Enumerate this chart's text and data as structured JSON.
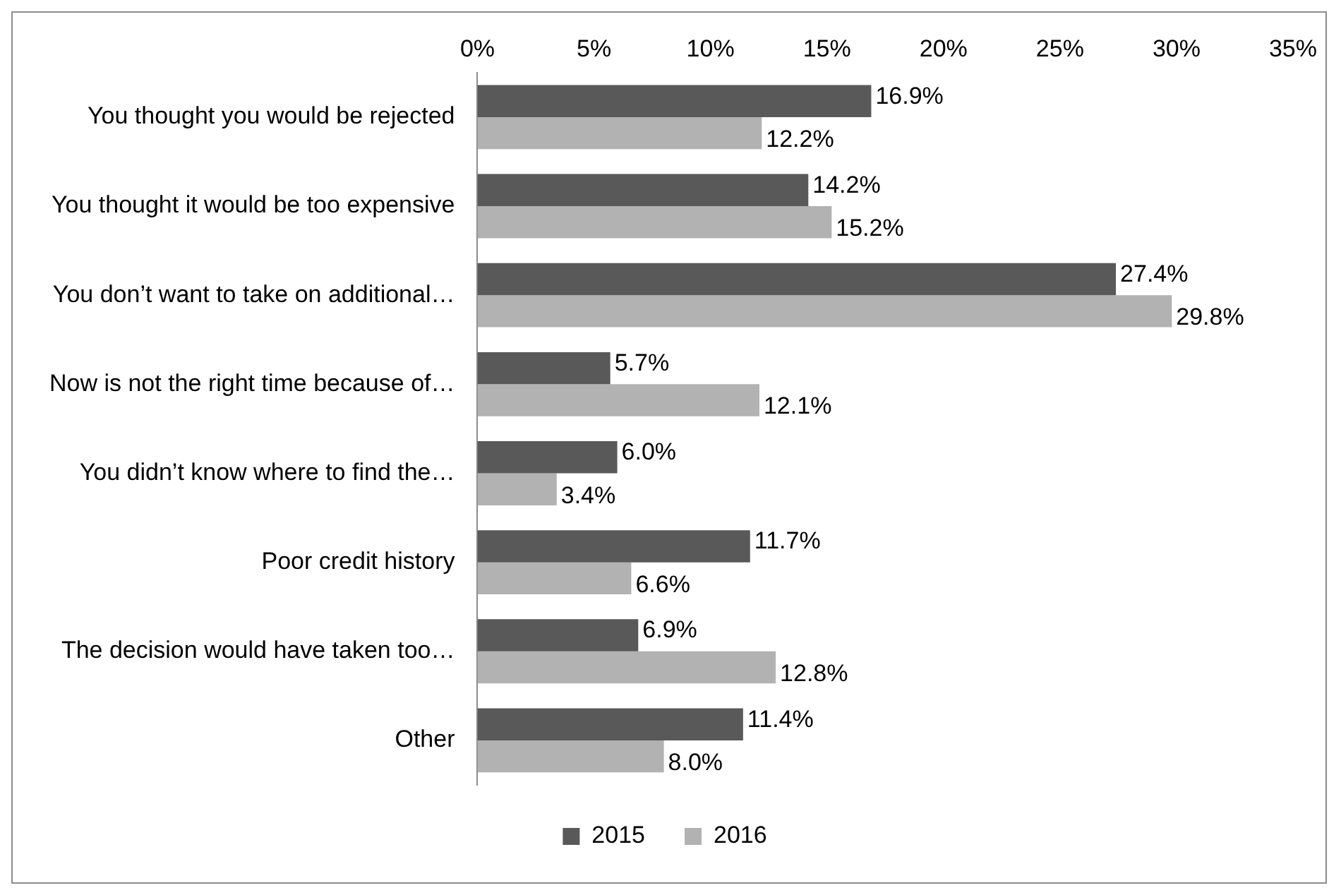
{
  "chart_data": {
    "type": "bar",
    "orientation": "horizontal",
    "categories": [
      "You thought you would be rejected",
      "You thought it would be too expensive",
      "You don’t want to take on additional…",
      "Now is not the right time because of…",
      "You didn’t know where to find the…",
      "Poor credit history",
      "The decision would have taken too…",
      "Other"
    ],
    "series": [
      {
        "name": "2015",
        "color": "#595959",
        "values": [
          16.9,
          14.2,
          27.4,
          5.7,
          6.0,
          11.7,
          6.9,
          11.4
        ],
        "value_labels": [
          "16.9%",
          "14.2%",
          "27.4%",
          "5.7%",
          "6.0%",
          "11.7%",
          "6.9%",
          "11.4%"
        ]
      },
      {
        "name": "2016",
        "color": "#b2b2b2",
        "values": [
          12.2,
          15.2,
          29.8,
          12.1,
          3.4,
          6.6,
          12.8,
          8.0
        ],
        "value_labels": [
          "12.2%",
          "15.2%",
          "29.8%",
          "12.1%",
          "3.4%",
          "6.6%",
          "12.8%",
          "8.0%"
        ]
      }
    ],
    "xlim": [
      0,
      35
    ],
    "xticks": [
      {
        "value": 0,
        "label": "0%"
      },
      {
        "value": 5,
        "label": "5%"
      },
      {
        "value": 10,
        "label": "10%"
      },
      {
        "value": 15,
        "label": "15%"
      },
      {
        "value": 20,
        "label": "20%"
      },
      {
        "value": 25,
        "label": "25%"
      },
      {
        "value": 30,
        "label": "30%"
      },
      {
        "value": 35,
        "label": "35%"
      }
    ],
    "grid": false,
    "legend": "bottom"
  }
}
